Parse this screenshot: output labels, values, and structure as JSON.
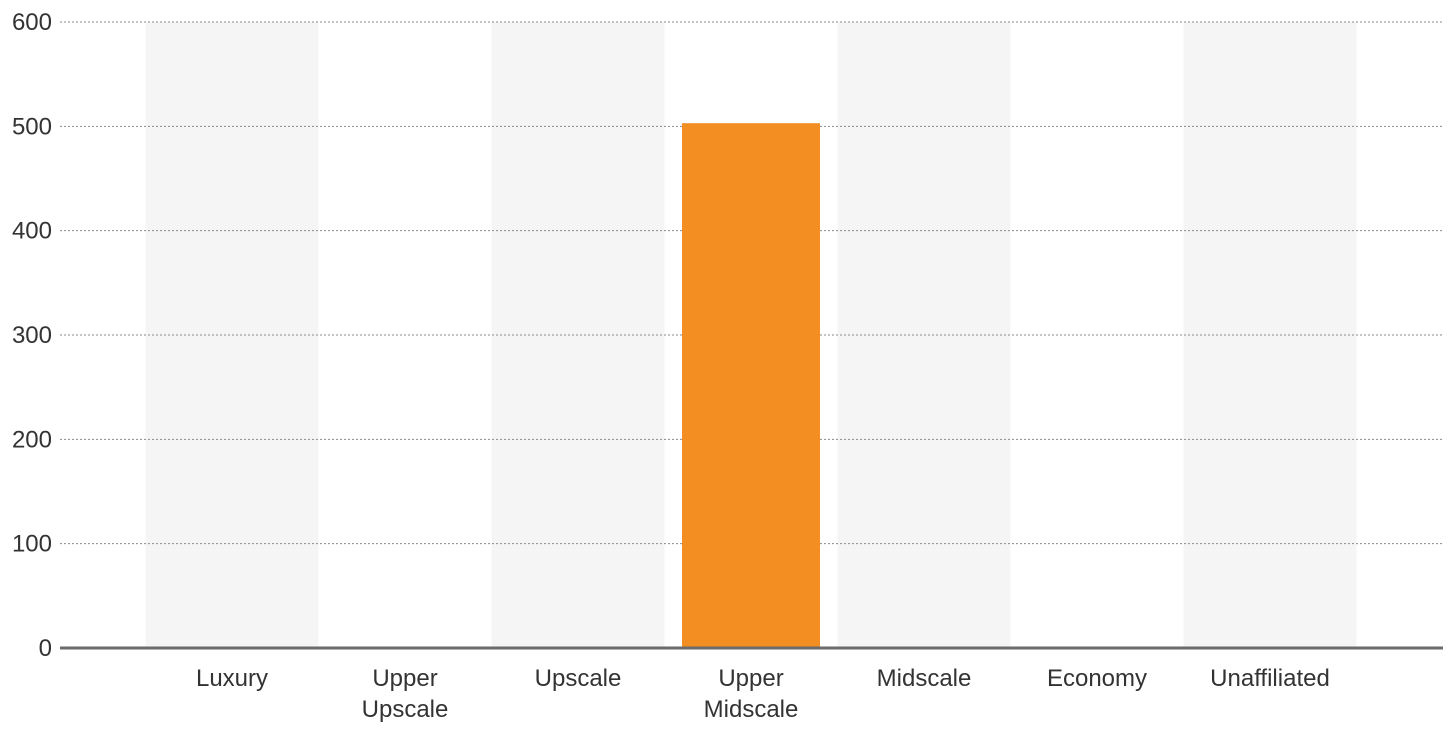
{
  "chart_data": {
    "type": "bar",
    "title": "",
    "xlabel": "",
    "ylabel": "",
    "categories": [
      "Luxury",
      "Upper Upscale",
      "Upscale",
      "Upper Midscale",
      "Midscale",
      "Economy",
      "Unaffiliated"
    ],
    "series": [
      {
        "values": [
          0,
          0,
          0,
          503,
          0,
          0,
          0
        ]
      }
    ],
    "ylim": [
      0,
      600
    ],
    "yticks": [
      "0",
      "100",
      "200",
      "300",
      "400",
      "500",
      "600"
    ],
    "grid": "horizontal-dotted",
    "alternating_bands": true,
    "colors": {
      "bar": "#f28e22",
      "band": "#f5f5f5",
      "grid": "#8a8a8a",
      "axis": "#6b6b6b",
      "text": "#333333"
    }
  }
}
